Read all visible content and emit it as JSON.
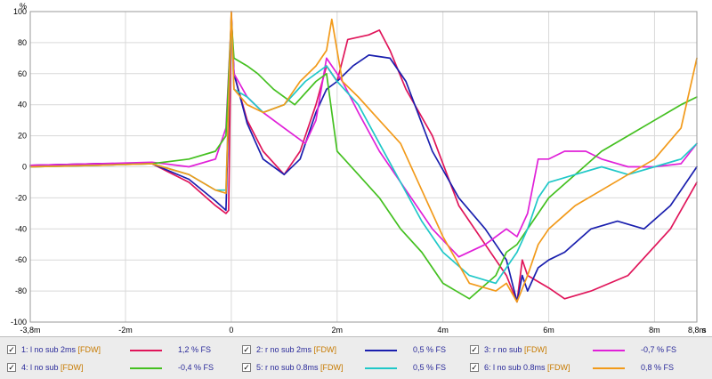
{
  "chart_data": {
    "type": "line",
    "title": "",
    "xlabel": "",
    "ylabel": "%",
    "x_unit": "s",
    "xlim": [
      -3.8,
      8.8
    ],
    "ylim": [
      -100,
      100
    ],
    "x_ticks": [
      {
        "value": -3.8,
        "label": "-3,8m"
      },
      {
        "value": -2,
        "label": "-2m"
      },
      {
        "value": 0,
        "label": "0"
      },
      {
        "value": 2,
        "label": "2m"
      },
      {
        "value": 4,
        "label": "4m"
      },
      {
        "value": 6,
        "label": "6m"
      },
      {
        "value": 8,
        "label": "8m"
      },
      {
        "value": 8.8,
        "label": "8,8m"
      }
    ],
    "y_ticks": [
      100,
      80,
      60,
      40,
      20,
      0,
      -20,
      -40,
      -60,
      -80,
      -100
    ],
    "grid": true,
    "legend_position": "bottom",
    "series": [
      {
        "index": "1:",
        "name": "l no sub 2ms",
        "tag": "[FDW]",
        "value_label": "1,2 % FS",
        "color": "#e0155a",
        "x": [
          -3.8,
          -2.5,
          -1.5,
          -0.8,
          -0.3,
          -0.1,
          -0.05,
          0,
          0.05,
          0.3,
          0.6,
          1.0,
          1.3,
          1.6,
          1.8,
          2.0,
          2.2,
          2.6,
          2.8,
          3.0,
          3.3,
          3.8,
          4.3,
          4.8,
          5.2,
          5.4,
          5.5,
          5.6,
          6.0,
          6.3,
          6.8,
          7.5,
          8.3,
          8.8
        ],
        "y": [
          1,
          2,
          2,
          -10,
          -25,
          -30,
          -28,
          100,
          60,
          30,
          10,
          -5,
          10,
          40,
          65,
          55,
          82,
          85,
          88,
          75,
          50,
          20,
          -25,
          -50,
          -70,
          -87,
          -60,
          -70,
          -78,
          -85,
          -80,
          -70,
          -40,
          -10
        ]
      },
      {
        "index": "2:",
        "name": "r no sub 2ms",
        "tag": "[FDW]",
        "value_label": "0,5 % FS",
        "color": "#1a1fae",
        "x": [
          -3.8,
          -2.5,
          -1.5,
          -0.8,
          -0.3,
          -0.1,
          0,
          0.05,
          0.3,
          0.6,
          1.0,
          1.3,
          1.6,
          1.8,
          2.0,
          2.3,
          2.6,
          3.0,
          3.3,
          3.8,
          4.3,
          4.8,
          5.2,
          5.4,
          5.5,
          5.6,
          5.8,
          6.0,
          6.3,
          6.8,
          7.3,
          7.8,
          8.3,
          8.8
        ],
        "y": [
          1,
          2,
          2,
          -8,
          -22,
          -28,
          98,
          60,
          28,
          5,
          -5,
          5,
          35,
          50,
          55,
          65,
          72,
          70,
          55,
          10,
          -20,
          -40,
          -60,
          -87,
          -70,
          -80,
          -65,
          -60,
          -55,
          -40,
          -35,
          -40,
          -25,
          0
        ]
      },
      {
        "index": "3:",
        "name": "r no sub",
        "tag": "[FDW]",
        "value_label": "-0,7 % FS",
        "color": "#e020d8",
        "x": [
          -3.8,
          -2.5,
          -1.5,
          -0.8,
          -0.3,
          -0.1,
          0,
          0.05,
          0.3,
          0.6,
          1.0,
          1.4,
          1.6,
          1.8,
          2.1,
          2.4,
          2.8,
          3.2,
          3.8,
          4.3,
          4.8,
          5.2,
          5.4,
          5.6,
          5.8,
          6.0,
          6.3,
          6.7,
          7.0,
          7.5,
          8.0,
          8.5,
          8.8
        ],
        "y": [
          1,
          2,
          3,
          0,
          5,
          25,
          95,
          60,
          45,
          35,
          25,
          15,
          30,
          70,
          55,
          35,
          10,
          -10,
          -40,
          -58,
          -50,
          -40,
          -45,
          -30,
          5,
          5,
          10,
          10,
          5,
          0,
          0,
          2,
          15
        ]
      },
      {
        "index": "4:",
        "name": "l no sub",
        "tag": "[FDW]",
        "value_label": "-0,4 % FS",
        "color": "#44c020",
        "x": [
          -3.8,
          -2.5,
          -1.5,
          -0.8,
          -0.3,
          -0.1,
          0,
          0.05,
          0.3,
          0.5,
          0.8,
          1.2,
          1.6,
          1.8,
          2.0,
          2.4,
          2.8,
          3.2,
          3.6,
          4.0,
          4.5,
          5.0,
          5.2,
          5.4,
          5.6,
          5.8,
          6.0,
          6.5,
          7.0,
          7.5,
          8.0,
          8.5,
          8.8
        ],
        "y": [
          0,
          1,
          2,
          5,
          10,
          20,
          95,
          70,
          65,
          60,
          50,
          40,
          55,
          60,
          10,
          -5,
          -20,
          -40,
          -55,
          -75,
          -85,
          -70,
          -55,
          -50,
          -40,
          -30,
          -20,
          -5,
          10,
          20,
          30,
          40,
          45
        ]
      },
      {
        "index": "5:",
        "name": "r no sub 0.8ms",
        "tag": "[FDW]",
        "value_label": "0,5 % FS",
        "color": "#20c8c8",
        "x": [
          -3.8,
          -2.5,
          -1.5,
          -0.8,
          -0.3,
          -0.1,
          0,
          0.05,
          0.3,
          0.6,
          1.0,
          1.4,
          1.8,
          2.0,
          2.4,
          2.8,
          3.2,
          3.6,
          4.0,
          4.5,
          5.0,
          5.2,
          5.4,
          5.6,
          5.8,
          6.0,
          6.5,
          7.0,
          7.5,
          8.0,
          8.5,
          8.8
        ],
        "y": [
          0,
          1,
          2,
          -5,
          -15,
          -15,
          95,
          50,
          45,
          35,
          40,
          55,
          65,
          55,
          40,
          15,
          -10,
          -35,
          -55,
          -70,
          -75,
          -65,
          -55,
          -40,
          -20,
          -10,
          -5,
          0,
          -5,
          0,
          5,
          15
        ]
      },
      {
        "index": "6:",
        "name": "l no sub 0.8ms",
        "tag": "[FDW]",
        "value_label": "0,8 % FS",
        "color": "#f29a1a",
        "x": [
          -3.8,
          -2.5,
          -1.5,
          -0.8,
          -0.3,
          -0.1,
          0,
          0.05,
          0.3,
          0.6,
          1.0,
          1.3,
          1.6,
          1.8,
          1.9,
          2.1,
          2.4,
          2.8,
          3.2,
          3.6,
          4.0,
          4.5,
          5.0,
          5.2,
          5.4,
          5.6,
          5.8,
          6.0,
          6.5,
          7.0,
          7.5,
          8.0,
          8.5,
          8.8
        ],
        "y": [
          0,
          1,
          2,
          -5,
          -15,
          -17,
          100,
          50,
          40,
          35,
          40,
          55,
          65,
          75,
          95,
          55,
          45,
          30,
          15,
          -15,
          -45,
          -75,
          -80,
          -75,
          -87,
          -70,
          -50,
          -40,
          -25,
          -15,
          -5,
          5,
          25,
          70
        ]
      }
    ]
  }
}
